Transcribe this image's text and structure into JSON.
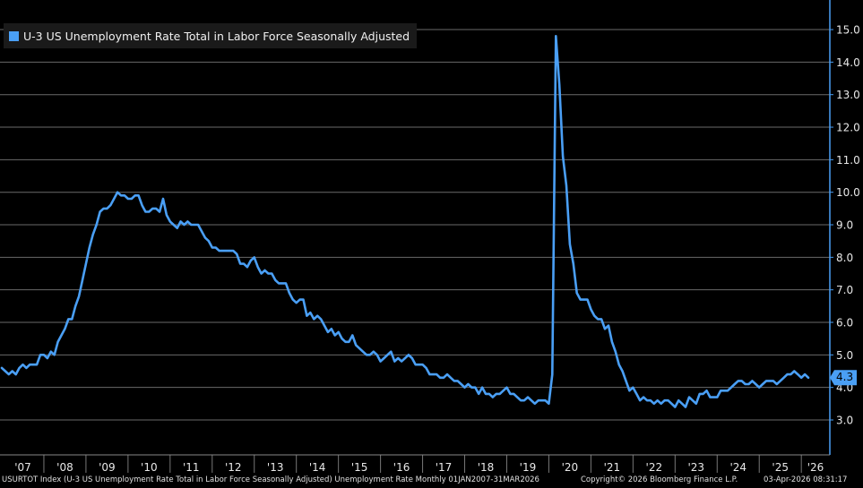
{
  "colors": {
    "line": "#4a9ff5",
    "grid": "#6a6a6a",
    "background": "#000000"
  },
  "legend": {
    "label": "U-3 US Unemployment Rate Total in Labor Force Seasonally Adjusted"
  },
  "footer": {
    "left": "USURTOT Index (U-3 US Unemployment Rate Total in Labor Force Seasonally Adjusted) Unemployment Rate Monthly 01JAN2007-31MAR2026",
    "middle": "Copyright© 2026 Bloomberg Finance L.P.",
    "right": "03-Apr-2026 08:31:17"
  },
  "chart_data": {
    "type": "line",
    "title": "",
    "xlabel": "",
    "ylabel": "",
    "ylim": [
      2.3,
      16.0
    ],
    "yticks": [
      "3.0",
      "4.0",
      "5.0",
      "6.0",
      "7.0",
      "8.0",
      "9.0",
      "10.0",
      "11.0",
      "12.0",
      "13.0",
      "14.0",
      "15.0"
    ],
    "xtick_labels": [
      "'07",
      "'08",
      "'09",
      "'10",
      "'11",
      "'12",
      "'13",
      "'14",
      "'15",
      "'16",
      "'17",
      "'18",
      "'19",
      "'20",
      "'21",
      "'22",
      "'23",
      "'24",
      "'25",
      "'26"
    ],
    "grid": true,
    "legend_position": "top-left",
    "x_start": "2007-01",
    "x_end": "2026-03",
    "last_value": "4.3",
    "series": [
      {
        "name": "U-3 US Unemployment Rate Total in Labor Force Seasonally Adjusted",
        "values": [
          4.6,
          4.5,
          4.4,
          4.5,
          4.4,
          4.6,
          4.7,
          4.6,
          4.7,
          4.7,
          4.7,
          5.0,
          5.0,
          4.9,
          5.1,
          5.0,
          5.4,
          5.6,
          5.8,
          6.1,
          6.1,
          6.5,
          6.8,
          7.3,
          7.8,
          8.3,
          8.7,
          9.0,
          9.4,
          9.5,
          9.5,
          9.6,
          9.8,
          10.0,
          9.9,
          9.9,
          9.8,
          9.8,
          9.9,
          9.9,
          9.6,
          9.4,
          9.4,
          9.5,
          9.5,
          9.4,
          9.8,
          9.3,
          9.1,
          9.0,
          8.9,
          9.1,
          9.0,
          9.1,
          9.0,
          9.0,
          9.0,
          8.8,
          8.6,
          8.5,
          8.3,
          8.3,
          8.2,
          8.2,
          8.2,
          8.2,
          8.2,
          8.1,
          7.8,
          7.8,
          7.7,
          7.9,
          8.0,
          7.7,
          7.5,
          7.6,
          7.5,
          7.5,
          7.3,
          7.2,
          7.2,
          7.2,
          6.9,
          6.7,
          6.6,
          6.7,
          6.7,
          6.2,
          6.3,
          6.1,
          6.2,
          6.1,
          5.9,
          5.7,
          5.8,
          5.6,
          5.7,
          5.5,
          5.4,
          5.4,
          5.6,
          5.3,
          5.2,
          5.1,
          5.0,
          5.0,
          5.1,
          5.0,
          4.8,
          4.9,
          5.0,
          5.1,
          4.8,
          4.9,
          4.8,
          4.9,
          5.0,
          4.9,
          4.7,
          4.7,
          4.7,
          4.6,
          4.4,
          4.4,
          4.4,
          4.3,
          4.3,
          4.4,
          4.3,
          4.2,
          4.2,
          4.1,
          4.0,
          4.1,
          4.0,
          4.0,
          3.8,
          4.0,
          3.8,
          3.8,
          3.7,
          3.8,
          3.8,
          3.9,
          4.0,
          3.8,
          3.8,
          3.7,
          3.6,
          3.6,
          3.7,
          3.6,
          3.5,
          3.6,
          3.6,
          3.6,
          3.5,
          4.4,
          14.8,
          13.3,
          11.1,
          10.2,
          8.4,
          7.8,
          6.9,
          6.7,
          6.7,
          6.7,
          6.4,
          6.2,
          6.1,
          6.1,
          5.8,
          5.9,
          5.4,
          5.1,
          4.7,
          4.5,
          4.2,
          3.9,
          4.0,
          3.8,
          3.6,
          3.7,
          3.6,
          3.6,
          3.5,
          3.6,
          3.5,
          3.6,
          3.6,
          3.5,
          3.4,
          3.6,
          3.5,
          3.4,
          3.7,
          3.6,
          3.5,
          3.8,
          3.8,
          3.9,
          3.7,
          3.7,
          3.7,
          3.9,
          3.9,
          3.9,
          4.0,
          4.1,
          4.2,
          4.2,
          4.1,
          4.1,
          4.2,
          4.1,
          4.0,
          4.1,
          4.2,
          4.2,
          4.2,
          4.1,
          4.2,
          4.3,
          4.4,
          4.4,
          4.5,
          4.4,
          4.3,
          4.4,
          4.3
        ]
      }
    ]
  }
}
